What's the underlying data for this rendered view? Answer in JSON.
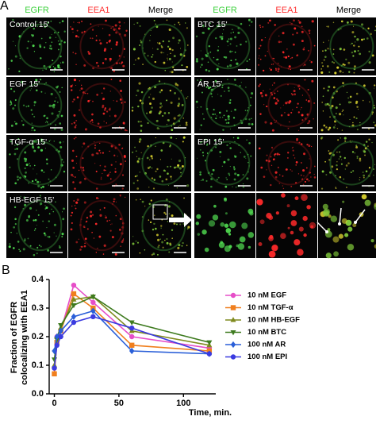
{
  "panel_a": {
    "label": "A",
    "left": {
      "columns": [
        "EGFR",
        "EEA1",
        "Merge"
      ],
      "rows": [
        "Control 15'",
        "EGF 15'",
        "TGF-α 15'",
        "HB-EGF 15'"
      ]
    },
    "right": {
      "columns": [
        "EGFR",
        "EEA1",
        "Merge"
      ],
      "rows": [
        "BTC 15'",
        "AR 15'",
        "EPI 15'",
        null
      ]
    }
  },
  "panel_b": {
    "label": "B"
  },
  "chart_data": {
    "type": "line",
    "xlabel": "Time, min.",
    "ylabel": [
      "Fraction of  EGFR",
      "colocalizing with EEA1"
    ],
    "x": [
      0,
      2,
      5,
      15,
      30,
      60,
      120
    ],
    "xlim": [
      -4,
      125
    ],
    "xticks": [
      0,
      50,
      100
    ],
    "ylim": [
      0,
      0.4
    ],
    "yticks": [
      {
        "value": 0,
        "label": "0.0"
      },
      {
        "value": 0.1,
        "label": "0.1"
      },
      {
        "value": 0.2,
        "label": "0.2"
      },
      {
        "value": 0.3,
        "label": "0.3"
      },
      {
        "value": 0.4,
        "label": "0.4"
      }
    ],
    "series": [
      {
        "name": "10 nM EGF",
        "color": "#e64ec8",
        "marker": "circle",
        "values": [
          0.09,
          0.2,
          0.22,
          0.38,
          0.32,
          0.2,
          0.16
        ]
      },
      {
        "name": "10 nM TGF-α",
        "color": "#f07f1e",
        "marker": "square",
        "values": [
          0.07,
          0.18,
          0.22,
          0.35,
          0.3,
          0.17,
          0.15
        ]
      },
      {
        "name": "10 nM HB-EGF",
        "color": "#7f8a1e",
        "marker": "triangle-up",
        "values": [
          0.1,
          0.2,
          0.23,
          0.33,
          0.34,
          0.22,
          0.17
        ]
      },
      {
        "name": "10 nM BTC",
        "color": "#3d7a1e",
        "marker": "triangle-down",
        "values": [
          0.12,
          0.19,
          0.24,
          0.31,
          0.34,
          0.25,
          0.18
        ]
      },
      {
        "name": "100 nM AR",
        "color": "#2a5fd8",
        "marker": "diamond",
        "values": [
          0.15,
          0.2,
          0.22,
          0.27,
          0.29,
          0.15,
          0.14
        ]
      },
      {
        "name": "100 nM EPI",
        "color": "#3b3be0",
        "marker": "circle",
        "values": [
          0.09,
          0.17,
          0.2,
          0.25,
          0.27,
          0.23,
          0.14
        ]
      }
    ]
  }
}
